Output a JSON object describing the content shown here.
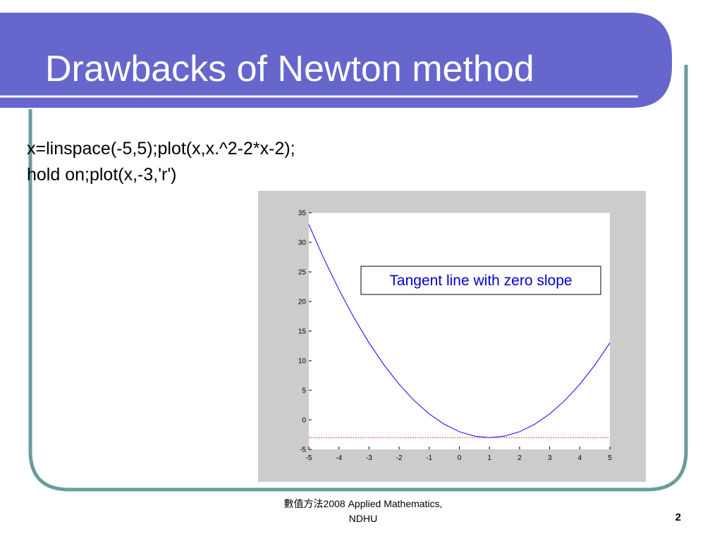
{
  "slide": {
    "title": "Drawbacks of Newton method",
    "code_lines": [
      "x=linspace(-5,5);plot(x,x.^2-2*x-2);",
      "hold on;plot(x,-3,'r')"
    ],
    "footer_line1": "數值方法2008 Applied Mathematics,",
    "footer_line2": "NDHU",
    "page_number": "2"
  },
  "theme": {
    "title_bar_color": "#6666cc",
    "frame_color": "#6a9c9a",
    "underline_color": "#ffffff",
    "figure_background": "#cccccc",
    "curve_color": "#0000ff",
    "dotted_line_color": "#ff0000",
    "annotation_text_color": "#0000cc"
  },
  "chart_data": {
    "type": "line",
    "title": "",
    "xlabel": "",
    "ylabel": "",
    "xlim": [
      -5,
      5
    ],
    "ylim": [
      -5,
      35
    ],
    "x_ticks": [
      -5,
      -4,
      -3,
      -2,
      -1,
      0,
      1,
      2,
      3,
      4,
      5
    ],
    "y_ticks": [
      -5,
      0,
      5,
      10,
      15,
      20,
      25,
      30,
      35
    ],
    "grid": false,
    "series": [
      {
        "style": "solid",
        "color": "#0000ff",
        "x": [
          -5,
          -4.5,
          -4,
          -3.5,
          -3,
          -2.5,
          -2,
          -1.5,
          -1,
          -0.5,
          0,
          0.5,
          1,
          1.5,
          2,
          2.5,
          3,
          3.5,
          4,
          4.5,
          5
        ],
        "y": [
          33,
          27.25,
          22,
          17.25,
          13,
          9.25,
          6,
          3.25,
          1,
          -0.75,
          -2,
          -2.75,
          -3,
          -2.75,
          -2,
          -0.75,
          1,
          3.25,
          6,
          9.25,
          13
        ]
      },
      {
        "style": "dotted",
        "color": "#ff0000",
        "x": [
          -5,
          5
        ],
        "y": [
          -3,
          -3
        ]
      }
    ],
    "annotations": [
      {
        "text": "Tangent line with zero slope"
      }
    ]
  }
}
